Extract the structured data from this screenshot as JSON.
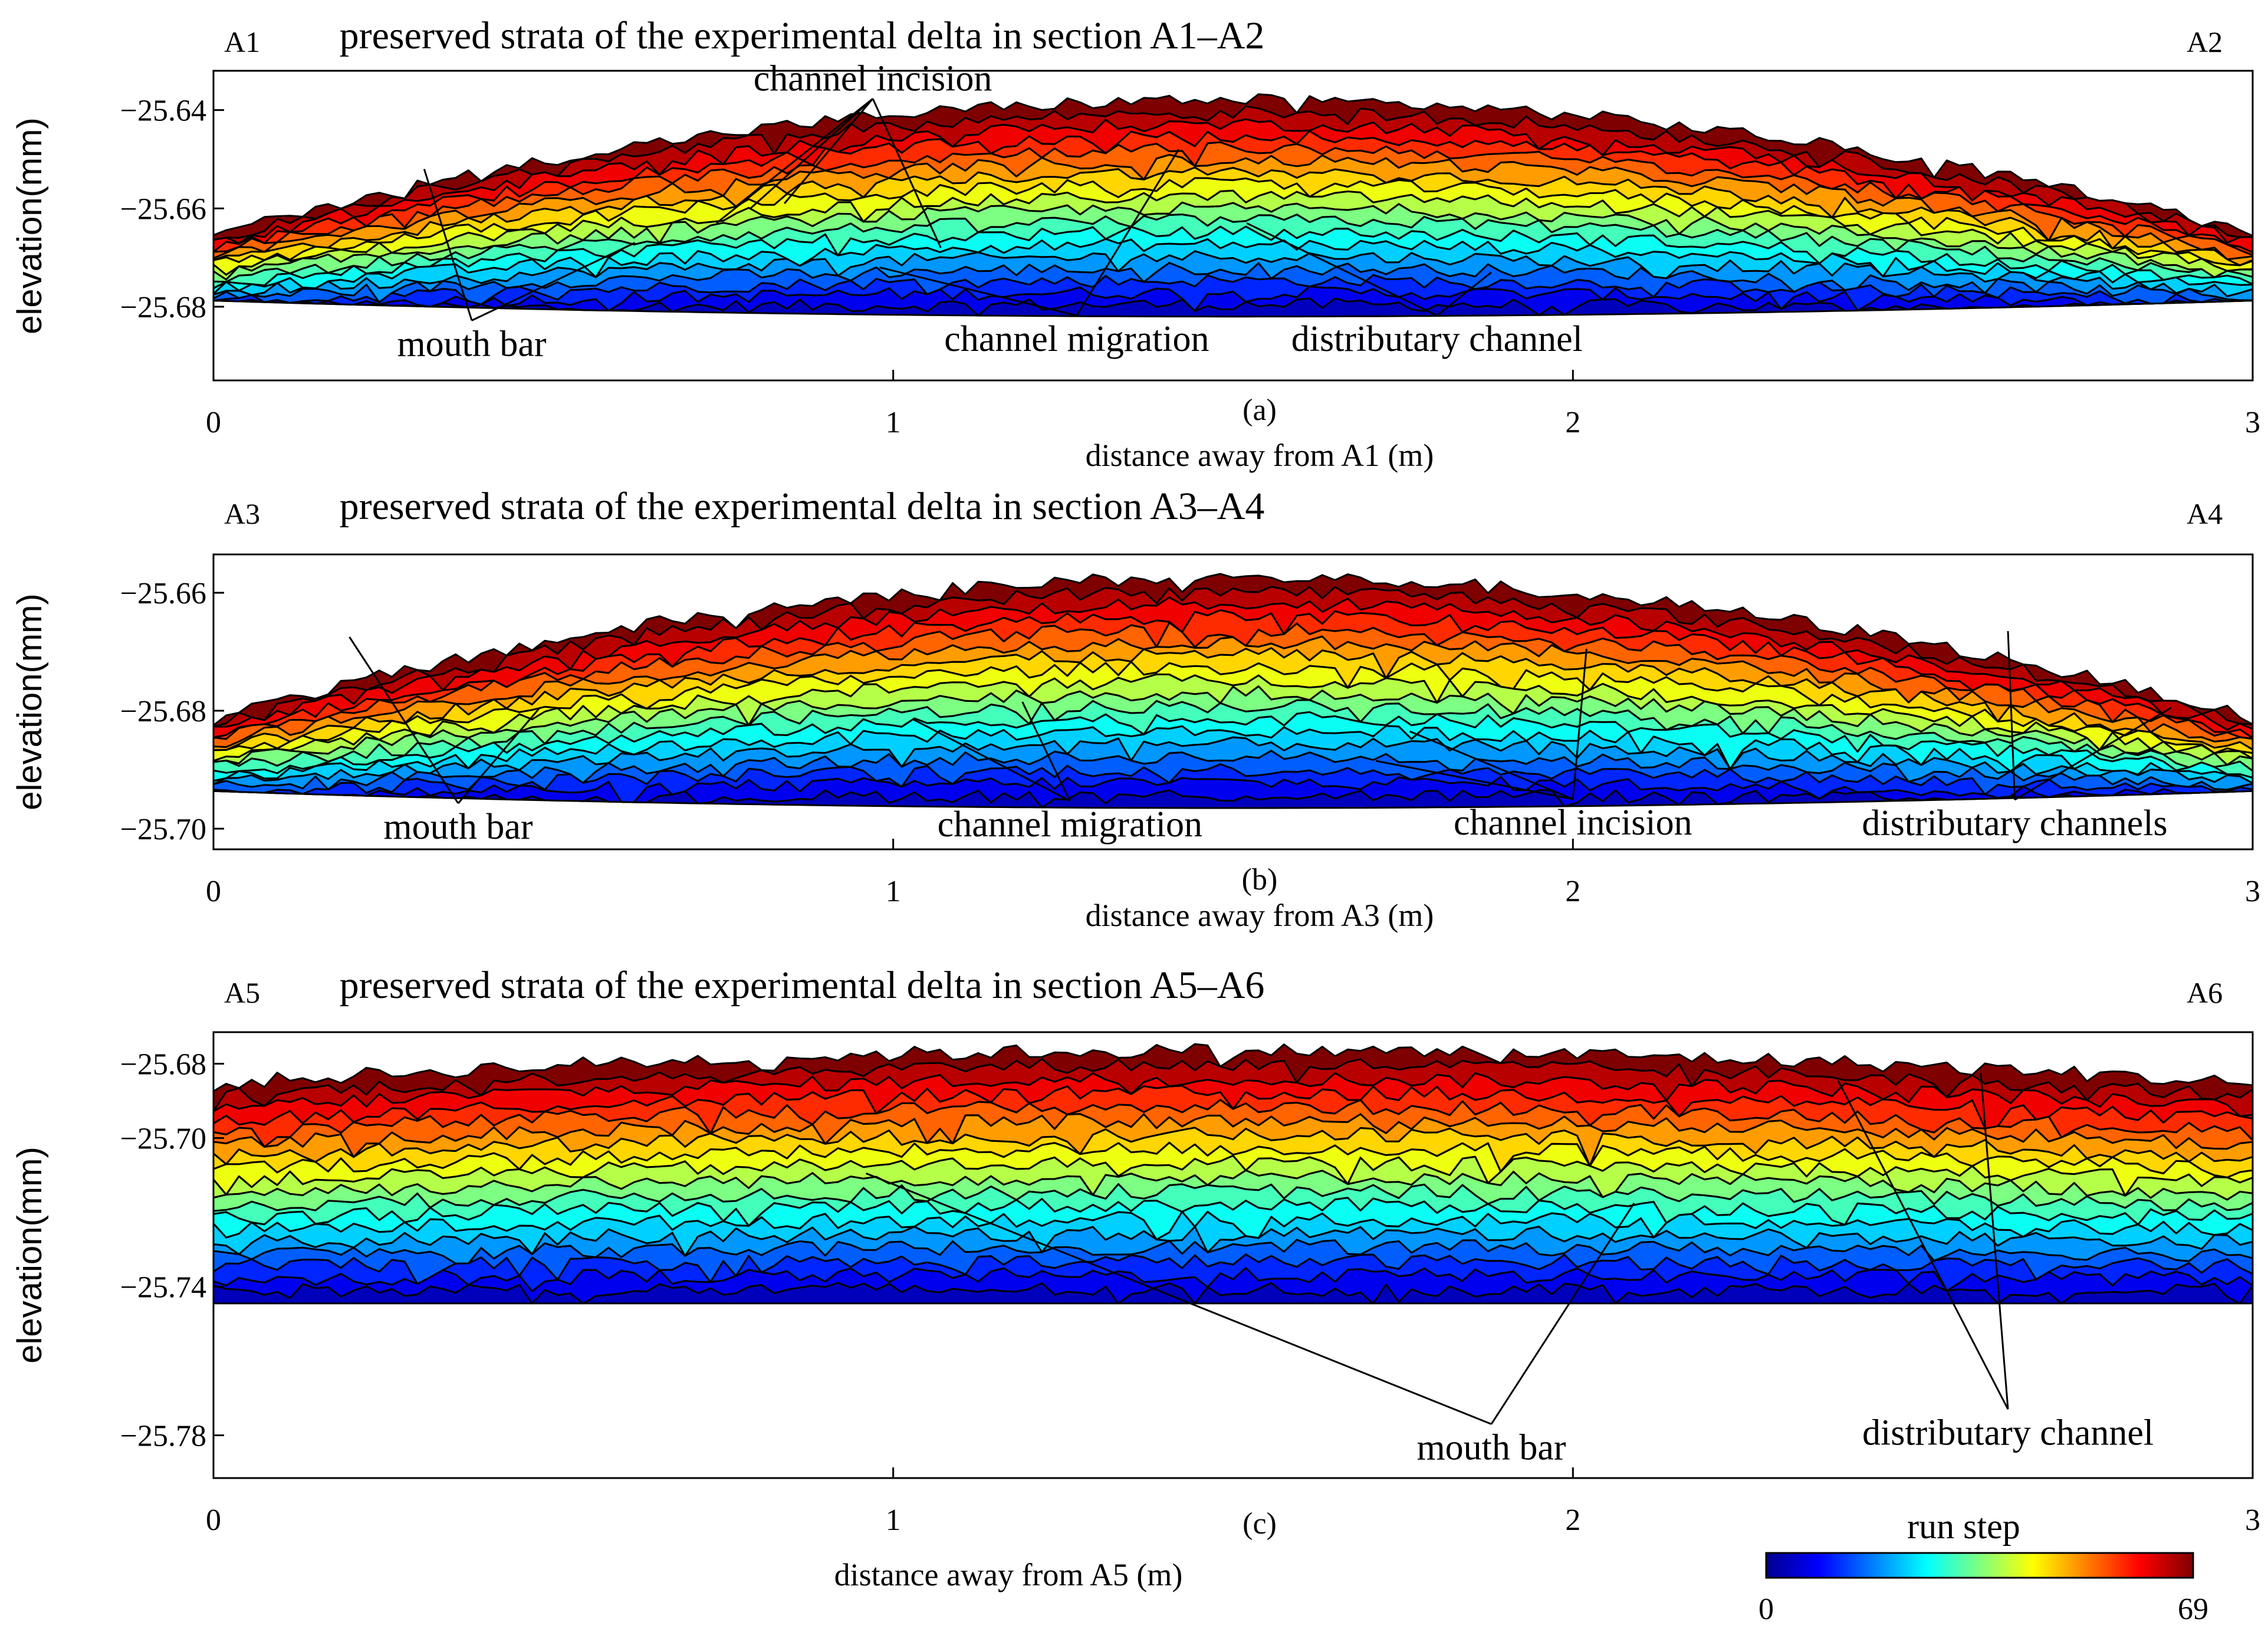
{
  "colors": {
    "colormap": [
      "#00008f",
      "#0000ff",
      "#007fff",
      "#00ffff",
      "#7fff7f",
      "#ffff00",
      "#ff7f00",
      "#ff0000",
      "#7f0000"
    ]
  },
  "chart_data": [
    {
      "type": "area",
      "panel_letter": "(a)",
      "title": "preserved strata  of the experimental delta in section A1–A2",
      "left_label": "A1",
      "right_label": "A2",
      "xlabel": "distance away from A1 (m)",
      "ylabel": "elevation(mm)",
      "xlim": [
        0,
        3
      ],
      "ylim": [
        -25.695,
        -25.632
      ],
      "xticks": [
        0,
        1,
        2,
        3
      ],
      "yticks": [
        -25.64,
        -25.66,
        -25.68
      ],
      "ytick_labels": [
        "−25.64",
        "−25.66",
        "−25.68"
      ],
      "base_elevation": -25.682,
      "top_elevation": -25.638,
      "annotations": [
        {
          "text": "channel incision",
          "x": 0.97,
          "y": -25.636,
          "targets": [
            [
              0.74,
              -25.663
            ],
            [
              0.84,
              -25.659
            ],
            [
              1.07,
              -25.668
            ],
            [
              0.79,
              -25.66
            ]
          ]
        },
        {
          "text": "mouth bar",
          "x": 0.38,
          "y": -25.69,
          "targets": [
            [
              0.31,
              -25.652
            ],
            [
              0.62,
              -25.667
            ]
          ]
        },
        {
          "text": "channel migration",
          "x": 1.27,
          "y": -25.689,
          "targets": [
            [
              0.98,
              -25.672
            ],
            [
              1.42,
              -25.648
            ]
          ]
        },
        {
          "text": "distributary channel",
          "x": 1.8,
          "y": -25.689,
          "targets": [
            [
              1.52,
              -25.663
            ],
            [
              1.88,
              -25.673
            ]
          ]
        }
      ]
    },
    {
      "type": "area",
      "panel_letter": "(b)",
      "title": "preserved strata  of the experimental delta in section A3–A4",
      "left_label": "A3",
      "right_label": "A4",
      "xlabel": "distance away from A3 (m)",
      "ylabel": "elevation(mm)",
      "xlim": [
        0,
        3
      ],
      "ylim": [
        -25.7035,
        -25.6535
      ],
      "xticks": [
        0,
        1,
        2,
        3
      ],
      "yticks": [
        -25.66,
        -25.68,
        -25.7
      ],
      "ytick_labels": [
        "−25.66",
        "−25.68",
        "−25.70"
      ],
      "base_elevation": -25.6965,
      "top_elevation": -25.6575,
      "annotations": [
        {
          "text": "mouth bar",
          "x": 0.36,
          "y": -25.7017,
          "targets": [
            [
              0.2,
              -25.6675
            ],
            [
              0.48,
              -25.6795
            ]
          ]
        },
        {
          "text": "channel migration",
          "x": 1.26,
          "y": -25.7013,
          "targets": [
            [
              1.03,
              -25.6815
            ],
            [
              1.19,
              -25.6785
            ]
          ]
        },
        {
          "text": "channel incision",
          "x": 2.0,
          "y": -25.701,
          "targets": [
            [
              1.76,
              -25.6835
            ],
            [
              2.02,
              -25.6695
            ],
            [
              1.71,
              -25.6885
            ]
          ]
        },
        {
          "text": "distributary channels",
          "x": 2.65,
          "y": -25.7011,
          "targets": [
            [
              2.64,
              -25.6665
            ],
            [
              2.88,
              -25.6795
            ]
          ]
        }
      ]
    },
    {
      "type": "area",
      "panel_letter": "(c)",
      "title": "preserved strata  of the experimental delta in section A5–A6",
      "left_label": "A5",
      "right_label": "A6",
      "xlabel": "distance away from A5 (m)",
      "ylabel": "elevation(mm)",
      "xlim": [
        0,
        3
      ],
      "ylim": [
        -25.7915,
        -25.6715
      ],
      "xticks": [
        0,
        1,
        2,
        3
      ],
      "yticks": [
        -25.68,
        -25.7,
        -25.74,
        -25.78
      ],
      "ytick_labels": [
        "−25.68",
        "−25.70",
        "−25.74",
        "−25.78"
      ],
      "base_elevation": -25.7445,
      "top_elevation": -25.6765,
      "annotations": [
        {
          "text": "mouth bar",
          "x": 1.88,
          "y": -25.7865,
          "targets": [
            [
              0.96,
              -25.7095
            ],
            [
              2.09,
              -25.7175
            ]
          ]
        },
        {
          "text": "distributary channel",
          "x": 2.64,
          "y": -25.7825,
          "targets": [
            [
              2.39,
              -25.6845
            ],
            [
              2.6,
              -25.6825
            ]
          ]
        }
      ]
    }
  ],
  "colorbar": {
    "title": "run step",
    "min_label": "0",
    "max_label": "69",
    "min": 0,
    "max": 69
  }
}
